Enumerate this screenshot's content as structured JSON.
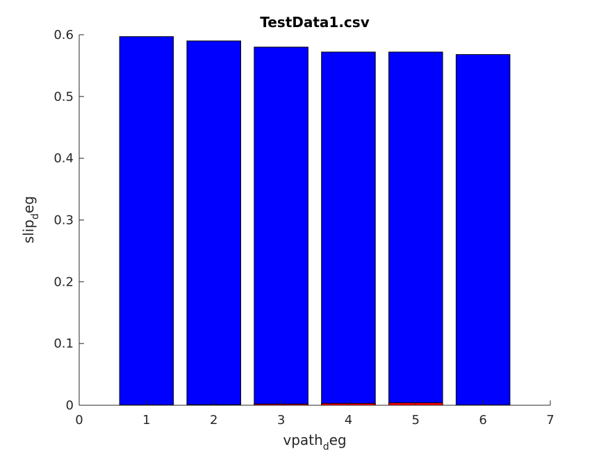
{
  "chart_data": {
    "type": "bar",
    "title": "TestData1.csv",
    "xlabel": {
      "main": "vpath",
      "sub": "d",
      "tail": "eg"
    },
    "ylabel": {
      "main": "slip",
      "sub": "d",
      "tail": "eg"
    },
    "x": [
      1,
      2,
      3,
      4,
      5,
      6
    ],
    "xlim": [
      0,
      7
    ],
    "ylim": [
      0,
      0.6
    ],
    "xticks": [
      "0",
      "1",
      "2",
      "3",
      "4",
      "5",
      "6",
      "7"
    ],
    "yticks": [
      "0",
      "0.1",
      "0.2",
      "0.3",
      "0.4",
      "0.5",
      "0.6"
    ],
    "grid": false,
    "series": [
      {
        "color": "#0000ff",
        "values": [
          0.597,
          0.59,
          0.58,
          0.572,
          0.572,
          0.568
        ]
      },
      {
        "color": "#ff0000",
        "values": [
          0.0005,
          0.001,
          0.002,
          0.003,
          0.004,
          0.0005
        ]
      }
    ]
  }
}
